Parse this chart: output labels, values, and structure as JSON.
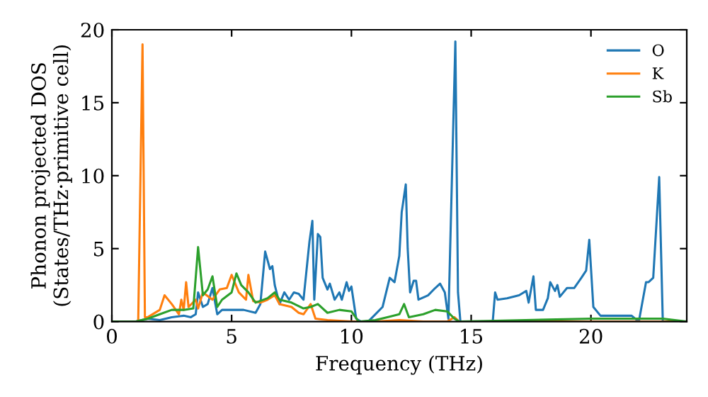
{
  "chart_data": {
    "type": "line",
    "xlabel": "Frequency (THz)",
    "ylabel": "Phonon projected DOS\n(States/THz·primitive cell)",
    "xlim": [
      0,
      24
    ],
    "ylim": [
      0,
      20
    ],
    "xticks": [
      0,
      5,
      10,
      15,
      20
    ],
    "yticks": [
      0,
      5,
      10,
      15,
      20
    ],
    "grid": false,
    "legend": "top right",
    "series": [
      {
        "name": "O",
        "color": "#1f77b4",
        "x": [
          0,
          1.0,
          1.5,
          2,
          2.5,
          3,
          3.3,
          3.5,
          3.6,
          3.8,
          4.0,
          4.2,
          4.4,
          4.6,
          5,
          5.5,
          6.0,
          6.2,
          6.4,
          6.6,
          6.7,
          6.8,
          7.0,
          7.2,
          7.4,
          7.6,
          7.8,
          8.0,
          8.25,
          8.37,
          8.45,
          8.6,
          8.7,
          8.8,
          9.0,
          9.1,
          9.3,
          9.5,
          9.6,
          9.8,
          9.9,
          10.0,
          10.2,
          10.4,
          10.7,
          11.0,
          11.3,
          11.6,
          11.8,
          12.0,
          12.1,
          12.27,
          12.35,
          12.45,
          12.6,
          12.7,
          12.8,
          13.2,
          13.5,
          13.7,
          13.9,
          14.05,
          14.34,
          14.45,
          14.55,
          15.0,
          15.9,
          16.0,
          16.1,
          16.5,
          17.0,
          17.3,
          17.4,
          17.6,
          17.7,
          18.0,
          18.2,
          18.3,
          18.5,
          18.6,
          18.7,
          19.0,
          19.3,
          19.6,
          19.8,
          19.93,
          20.1,
          20.4,
          21.0,
          21.7,
          22.0,
          22.3,
          22.4,
          22.6,
          22.85,
          23.0,
          24
        ],
        "values": [
          0,
          0,
          0.2,
          0.1,
          0.3,
          0.4,
          0.3,
          0.5,
          2,
          1.0,
          1.2,
          2.3,
          0.5,
          0.8,
          0.8,
          0.8,
          0.6,
          1.2,
          4.8,
          3.6,
          3.8,
          2.5,
          1.2,
          2.0,
          1.5,
          2.0,
          1.9,
          1.5,
          5.5,
          6.9,
          1.5,
          6.0,
          5.8,
          3.0,
          2.2,
          2.6,
          1.5,
          2.0,
          1.5,
          2.7,
          2.1,
          2.4,
          0.2,
          0,
          0,
          0.5,
          1.0,
          3.0,
          2.7,
          4.5,
          7.5,
          9.4,
          5,
          2.0,
          2.8,
          2.8,
          1.5,
          1.8,
          2.3,
          2.6,
          2.0,
          0.2,
          19.2,
          2,
          0,
          0,
          0,
          2.0,
          1.5,
          1.6,
          1.8,
          2.1,
          1.3,
          3.1,
          0.8,
          0.8,
          1.6,
          2.7,
          2.1,
          2.5,
          1.7,
          2.3,
          2.3,
          3.0,
          3.5,
          5.6,
          1.0,
          0.4,
          0.4,
          0.4,
          0,
          2.7,
          2.7,
          3.0,
          9.9,
          0,
          0
        ]
      },
      {
        "name": "K",
        "color": "#ff7f0e",
        "x": [
          0,
          1.1,
          1.28,
          1.38,
          1.5,
          2.0,
          2.2,
          2.5,
          2.8,
          2.9,
          3.0,
          3.1,
          3.2,
          3.5,
          3.6,
          3.8,
          4.2,
          4.5,
          4.8,
          5.0,
          5.3,
          5.6,
          5.7,
          5.9,
          6.2,
          6.5,
          6.8,
          7.0,
          7.5,
          7.8,
          8.0,
          8.3,
          8.5,
          9.0,
          10,
          11,
          12,
          13,
          14,
          14.3,
          14.5,
          24
        ],
        "values": [
          0,
          0,
          19,
          0.3,
          0.3,
          0.8,
          1.8,
          1.2,
          0.5,
          1.5,
          0.8,
          2.7,
          1.0,
          1.5,
          0.9,
          2.0,
          1.5,
          2.2,
          2.3,
          3.2,
          2.0,
          1.5,
          3.2,
          1.4,
          1.3,
          1.5,
          1.8,
          1.2,
          1.0,
          0.6,
          0.5,
          1.2,
          0.2,
          0.1,
          0,
          0,
          0.1,
          0,
          0,
          0.3,
          0,
          0
        ]
      },
      {
        "name": "Sb",
        "color": "#2ca02c",
        "x": [
          0,
          1,
          1.5,
          2,
          2.5,
          3,
          3.4,
          3.6,
          3.8,
          4.0,
          4.2,
          4.4,
          4.6,
          5.0,
          5.2,
          5.4,
          5.7,
          6.0,
          6.5,
          6.8,
          7.0,
          7.5,
          8.0,
          8.3,
          8.6,
          9.0,
          9.5,
          10,
          10.3,
          11.0,
          11.5,
          12.0,
          12.2,
          12.4,
          13.0,
          13.5,
          14.0,
          14.3,
          14.5,
          16,
          20,
          23,
          24
        ],
        "values": [
          0,
          0,
          0.2,
          0.5,
          0.8,
          0.8,
          0.9,
          5.1,
          1.8,
          2.2,
          3.1,
          1.0,
          1.5,
          2.0,
          3.3,
          2.5,
          2.0,
          1.3,
          1.6,
          2.0,
          1.5,
          1.3,
          0.9,
          1.0,
          1.2,
          0.6,
          0.8,
          0.7,
          0,
          0.1,
          0.3,
          0.5,
          1.2,
          0.3,
          0.5,
          0.8,
          0.7,
          0.2,
          0,
          0.05,
          0.2,
          0.2,
          0
        ]
      }
    ]
  }
}
